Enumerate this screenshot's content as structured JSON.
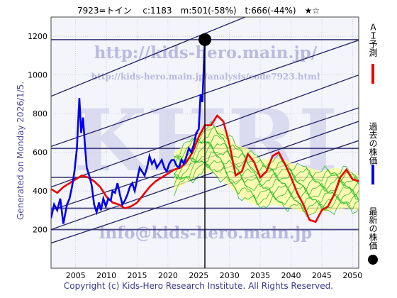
{
  "header": {
    "title": "7923=トイン　 c:1183　m:501(-58%)　t:666(-44%)　★☆"
  },
  "side_label": "Generated on Monday 2026/1/5.",
  "footer": "Copyright (c) Kids-Hero Research Institute. All Rights Reserved.",
  "watermarks": {
    "url_main": "http://kids-hero.main.jp/",
    "url_sub": "http://kids-hero.main.jp/analysis/code7923.html",
    "big": "KHRI",
    "email": "info@kids-hero.main.jp"
  },
  "legend": [
    {
      "label": "ＡＩ予測",
      "color": "#ee0000",
      "kind": "line"
    },
    {
      "label": "過去の株価",
      "color": "#0000ee",
      "kind": "line"
    },
    {
      "label": "最新の株価",
      "color": "#000000",
      "kind": "dot"
    }
  ],
  "colors": {
    "actual": "#0000ee",
    "forecast": "#ee0000",
    "scenarios": "#22bb22",
    "band_fill": "#ffff99",
    "channel": "#222266",
    "hline": "#222266"
  },
  "chart_data": {
    "type": "line",
    "xlim": [
      2001,
      2051
    ],
    "ylim": [
      0,
      1300
    ],
    "x_ticks": [
      2005,
      2010,
      2015,
      2020,
      2025,
      2030,
      2035,
      2040,
      2045,
      2050
    ],
    "y_ticks": [
      200,
      400,
      600,
      800,
      1000,
      1200
    ],
    "grid": true,
    "latest": {
      "x": 2026.0,
      "y": 1183
    },
    "horizontal_levels": [
      1183,
      620,
      470,
      310,
      200
    ],
    "series": [
      {
        "role": "actual",
        "x": [
          2001.0,
          2001.5,
          2002.0,
          2002.5,
          2003.0,
          2003.3,
          2003.6,
          2004.0,
          2004.4,
          2004.8,
          2005.2,
          2005.6,
          2005.9,
          2006.2,
          2006.5,
          2006.8,
          2007.2,
          2007.6,
          2008.0,
          2008.4,
          2008.8,
          2009.1,
          2009.5,
          2009.9,
          2010.3,
          2010.7,
          2011.0,
          2011.4,
          2011.8,
          2012.2,
          2012.6,
          2013.0,
          2013.4,
          2013.8,
          2014.2,
          2014.6,
          2015.0,
          2015.4,
          2015.8,
          2016.2,
          2016.6,
          2017.0,
          2017.4,
          2017.8,
          2018.2,
          2018.6,
          2019.0,
          2019.4,
          2019.8,
          2020.2,
          2020.6,
          2021.0,
          2021.4,
          2021.8,
          2022.2,
          2022.6,
          2023.0,
          2023.4,
          2023.8,
          2024.2,
          2024.6,
          2025.0,
          2025.3,
          2025.6,
          2026.0
        ],
        "y": [
          260,
          330,
          300,
          360,
          230,
          280,
          330,
          360,
          420,
          500,
          620,
          880,
          700,
          780,
          640,
          520,
          480,
          430,
          330,
          290,
          340,
          300,
          360,
          320,
          360,
          350,
          400,
          390,
          440,
          380,
          330,
          350,
          380,
          420,
          440,
          400,
          460,
          520,
          500,
          480,
          520,
          580,
          540,
          560,
          520,
          540,
          560,
          520,
          500,
          540,
          560,
          560,
          530,
          520,
          560,
          540,
          580,
          620,
          600,
          640,
          700,
          720,
          900,
          860,
          1183
        ]
      },
      {
        "role": "forecast",
        "x": [
          2001.0,
          2002.0,
          2003.0,
          2004.0,
          2005.0,
          2006.0,
          2007.0,
          2008.0,
          2009.0,
          2010.0,
          2011.0,
          2012.0,
          2013.0,
          2014.0,
          2015.0,
          2016.0,
          2017.0,
          2018.0,
          2019.0,
          2020.0,
          2021.0,
          2022.0,
          2023.0,
          2024.0,
          2025.0,
          2026.0,
          2027.0,
          2028.0,
          2029.0,
          2030.0,
          2031.0,
          2032.0,
          2033.0,
          2034.0,
          2035.0,
          2036.0,
          2037.0,
          2038.0,
          2039.0,
          2040.0,
          2041.0,
          2042.0,
          2043.0,
          2044.0,
          2045.0,
          2046.0,
          2047.0,
          2048.0,
          2049.0,
          2050.0,
          2051.0
        ],
        "y": [
          410,
          390,
          420,
          440,
          460,
          480,
          470,
          450,
          420,
          370,
          340,
          330,
          310,
          320,
          340,
          380,
          420,
          450,
          470,
          490,
          510,
          520,
          550,
          600,
          680,
          740,
          740,
          790,
          760,
          640,
          480,
          500,
          590,
          550,
          470,
          500,
          580,
          600,
          540,
          470,
          390,
          330,
          250,
          240,
          300,
          320,
          380,
          470,
          510,
          460,
          450
        ]
      },
      {
        "role": "scenario_upper",
        "x": [
          2021,
          2023,
          2025,
          2027,
          2029,
          2031,
          2033,
          2035,
          2037,
          2039,
          2041,
          2043,
          2045,
          2047,
          2049,
          2051
        ],
        "y": [
          600,
          640,
          700,
          740,
          720,
          640,
          620,
          560,
          570,
          560,
          530,
          520,
          500,
          520,
          510,
          480
        ]
      },
      {
        "role": "scenario_lower",
        "x": [
          2021,
          2023,
          2025,
          2027,
          2029,
          2031,
          2033,
          2035,
          2037,
          2039,
          2041,
          2043,
          2045,
          2047,
          2049,
          2051
        ],
        "y": [
          400,
          440,
          480,
          500,
          450,
          390,
          340,
          320,
          330,
          320,
          300,
          280,
          290,
          300,
          310,
          300
        ]
      }
    ],
    "channels": [
      {
        "x": [
          2001,
          2051
        ],
        "y": [
          890,
          1540
        ]
      },
      {
        "x": [
          2001,
          2051
        ],
        "y": [
          630,
          1180
        ]
      },
      {
        "x": [
          2001,
          2051
        ],
        "y": [
          420,
          1000
        ]
      },
      {
        "x": [
          2001,
          2051
        ],
        "y": [
          300,
          830
        ]
      },
      {
        "x": [
          2001,
          2051
        ],
        "y": [
          200,
          760
        ]
      },
      {
        "x": [
          2001,
          2051
        ],
        "y": [
          130,
          660
        ]
      }
    ]
  }
}
